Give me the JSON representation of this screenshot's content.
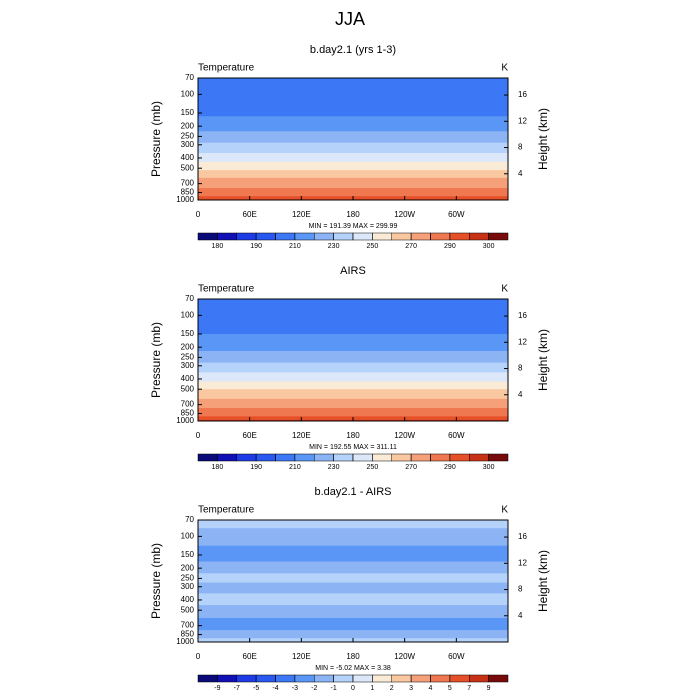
{
  "title": "JJA",
  "chart_data": [
    {
      "type": "contour",
      "title": "b.day2.1 (yrs 1-3)",
      "left_label": "Temperature",
      "right_label": "K",
      "ylabel": "Pressure (mb)",
      "y2label": "Height (km)",
      "stats": "MIN = 191.39  MAX = 299.99",
      "log_y": true,
      "ylim": [
        1000,
        70
      ],
      "yticks": [
        70,
        100,
        150,
        200,
        250,
        300,
        400,
        500,
        700,
        850,
        1000
      ],
      "y2lim": [
        0,
        18.6
      ],
      "y2ticks": [
        4,
        8,
        12,
        16
      ],
      "xlim": [
        0,
        360
      ],
      "xticks": [
        0,
        {
          "value": 60,
          "label": "60E"
        },
        {
          "value": 120,
          "label": "120E"
        },
        180,
        {
          "value": 240,
          "label": "120W"
        },
        {
          "value": 300,
          "label": "60W"
        }
      ],
      "field": {
        "pressure": [
          70,
          100,
          150,
          200,
          250,
          300,
          400,
          500,
          700,
          850,
          1000
        ],
        "values": [
          203,
          203,
          208,
          216,
          225,
          232,
          246,
          258,
          276,
          285,
          294
        ]
      },
      "colorbar": {
        "levels": [
          180,
          185,
          190,
          200,
          210,
          220,
          230,
          240,
          250,
          260,
          270,
          280,
          290,
          295,
          300
        ],
        "ticks": [
          180,
          190,
          210,
          230,
          250,
          270,
          290,
          300
        ],
        "colors": [
          "#0a0a78",
          "#1010b4",
          "#1e3ce6",
          "#2858f0",
          "#3c78f5",
          "#5a96f5",
          "#8cb4f5",
          "#b4d2fa",
          "#dce8fa",
          "#faebd7",
          "#fac8a0",
          "#f5a078",
          "#f07850",
          "#e65028",
          "#c83214",
          "#780a0a"
        ]
      }
    },
    {
      "type": "contour",
      "title": "AIRS",
      "left_label": "Temperature",
      "right_label": "K",
      "ylabel": "Pressure (mb)",
      "y2label": "Height (km)",
      "stats": "MIN = 192.55  MAX = 311.11",
      "log_y": true,
      "ylim": [
        1000,
        70
      ],
      "yticks": [
        70,
        100,
        150,
        200,
        250,
        300,
        400,
        500,
        700,
        850,
        1000
      ],
      "y2lim": [
        0,
        18.6
      ],
      "y2ticks": [
        4,
        8,
        12,
        16
      ],
      "xlim": [
        0,
        360
      ],
      "xticks": [
        0,
        {
          "value": 60,
          "label": "60E"
        },
        {
          "value": 120,
          "label": "120E"
        },
        180,
        {
          "value": 240,
          "label": "120W"
        },
        {
          "value": 300,
          "label": "60W"
        }
      ],
      "field": {
        "pressure": [
          70,
          100,
          150,
          200,
          250,
          300,
          400,
          500,
          700,
          850,
          1000
        ],
        "values": [
          204,
          204,
          210,
          217,
          226,
          233,
          247,
          259,
          277,
          286,
          296
        ]
      },
      "colorbar": {
        "levels": [
          180,
          185,
          190,
          200,
          210,
          220,
          230,
          240,
          250,
          260,
          270,
          280,
          290,
          295,
          300
        ],
        "ticks": [
          180,
          190,
          210,
          230,
          250,
          270,
          290,
          300
        ],
        "colors": [
          "#0a0a78",
          "#1010b4",
          "#1e3ce6",
          "#2858f0",
          "#3c78f5",
          "#5a96f5",
          "#8cb4f5",
          "#b4d2fa",
          "#dce8fa",
          "#faebd7",
          "#fac8a0",
          "#f5a078",
          "#f07850",
          "#e65028",
          "#c83214",
          "#780a0a"
        ]
      }
    },
    {
      "type": "contour",
      "title": "b.day2.1 - AIRS",
      "left_label": "Temperature",
      "right_label": "K",
      "ylabel": "Pressure (mb)",
      "y2label": "Height (km)",
      "stats": "MIN =  -5.02  MAX =   3.38",
      "log_y": true,
      "ylim": [
        1000,
        70
      ],
      "yticks": [
        70,
        100,
        150,
        200,
        250,
        300,
        400,
        500,
        700,
        850,
        1000
      ],
      "y2lim": [
        0,
        18.6
      ],
      "y2ticks": [
        4,
        8,
        12,
        16
      ],
      "xlim": [
        0,
        360
      ],
      "xticks": [
        0,
        {
          "value": 60,
          "label": "60E"
        },
        {
          "value": 120,
          "label": "120E"
        },
        180,
        {
          "value": 240,
          "label": "120W"
        },
        {
          "value": 300,
          "label": "60W"
        }
      ],
      "field": {
        "pressure": [
          70,
          100,
          150,
          200,
          250,
          300,
          400,
          500,
          700,
          850,
          1000
        ],
        "values": [
          -0.5,
          -1.5,
          -2.5,
          -1.5,
          -0.5,
          -1.5,
          -0.5,
          -1.5,
          -2.5,
          -1.5,
          -0.5
        ]
      },
      "colorbar": {
        "levels": [
          -9,
          -7,
          -5,
          -4,
          -3,
          -2,
          -1,
          0,
          1,
          2,
          3,
          4,
          5,
          7,
          9
        ],
        "colors": [
          "#0a0a78",
          "#1010b4",
          "#1e3ce6",
          "#2858f0",
          "#3c78f5",
          "#5a96f5",
          "#8cb4f5",
          "#b4d2fa",
          "#dce8fa",
          "#faebd7",
          "#fac8a0",
          "#f5a078",
          "#f07850",
          "#e65028",
          "#c83214",
          "#780a0a"
        ]
      }
    }
  ]
}
